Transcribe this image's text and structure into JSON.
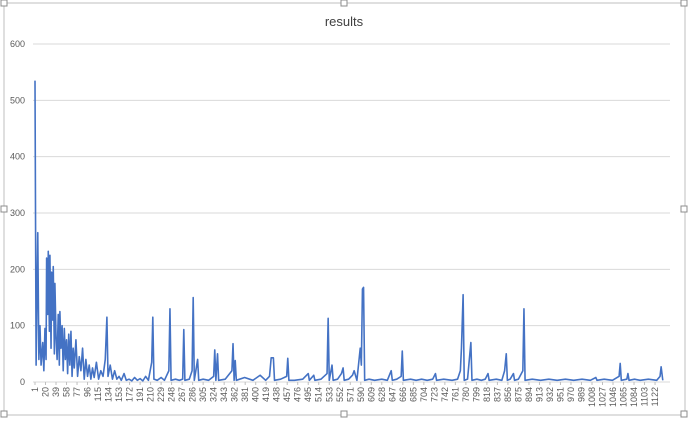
{
  "chart_data": {
    "type": "line",
    "title": "results",
    "x": [
      1,
      3,
      6,
      8,
      10,
      12,
      15,
      17,
      19,
      21,
      22,
      24,
      25,
      27,
      28,
      30,
      31,
      33,
      34,
      36,
      37,
      39,
      41,
      43,
      45,
      46,
      48,
      50,
      52,
      54,
      56,
      58,
      60,
      62,
      64,
      66,
      68,
      70,
      72,
      75,
      78,
      81,
      84,
      87,
      90,
      93,
      96,
      99,
      102,
      105,
      108,
      112,
      116,
      120,
      124,
      128,
      131,
      133,
      137,
      141,
      145,
      149,
      153,
      157,
      162,
      166,
      171,
      176,
      181,
      186,
      191,
      196,
      201,
      206,
      212,
      214,
      216,
      222,
      229,
      235,
      243,
      245,
      247,
      255,
      262,
      268,
      270,
      272,
      280,
      285,
      287,
      289,
      295,
      297,
      305,
      315,
      324,
      326,
      328,
      331,
      333,
      345,
      357,
      359,
      361,
      363,
      365,
      380,
      395,
      408,
      418,
      425,
      428,
      432,
      434,
      445,
      456,
      458,
      460,
      470,
      485,
      495,
      497,
      505,
      507,
      518,
      529,
      531,
      533,
      538,
      540,
      548,
      555,
      558,
      560,
      568,
      575,
      578,
      583,
      589,
      591,
      593,
      595,
      597,
      605,
      615,
      628,
      638,
      645,
      647,
      655,
      663,
      665,
      667,
      680,
      690,
      700,
      710,
      720,
      725,
      727,
      740,
      755,
      765,
      770,
      772,
      775,
      777,
      783,
      789,
      791,
      800,
      808,
      815,
      820,
      822,
      835,
      845,
      850,
      853,
      855,
      860,
      866,
      868,
      875,
      883,
      885,
      887,
      900,
      915,
      930,
      945,
      960,
      975,
      990,
      1005,
      1015,
      1017,
      1030,
      1045,
      1057,
      1059,
      1061,
      1071,
      1073,
      1075,
      1085,
      1095,
      1110,
      1125,
      1131,
      1133,
      1136
    ],
    "series": [
      {
        "name": "results",
        "color": "#4472c4",
        "values": [
          535,
          30,
          265,
          40,
          100,
          30,
          70,
          20,
          95,
          40,
          220,
          120,
          232,
          90,
          225,
          60,
          195,
          110,
          205,
          50,
          175,
          80,
          40,
          120,
          30,
          125,
          60,
          100,
          20,
          95,
          40,
          75,
          15,
          85,
          30,
          90,
          10,
          60,
          25,
          75,
          10,
          45,
          20,
          60,
          5,
          40,
          10,
          30,
          5,
          25,
          8,
          35,
          5,
          20,
          10,
          40,
          115,
          10,
          30,
          5,
          20,
          5,
          10,
          3,
          15,
          3,
          5,
          2,
          8,
          3,
          6,
          2,
          10,
          3,
          35,
          115,
          5,
          3,
          8,
          3,
          20,
          130,
          3,
          5,
          3,
          5,
          93,
          3,
          5,
          20,
          150,
          3,
          40,
          3,
          5,
          3,
          10,
          57,
          3,
          50,
          3,
          5,
          20,
          68,
          3,
          38,
          3,
          8,
          3,
          12,
          3,
          10,
          43,
          43,
          3,
          5,
          10,
          42,
          3,
          3,
          5,
          15,
          3,
          12,
          3,
          5,
          15,
          113,
          3,
          30,
          3,
          5,
          15,
          25,
          3,
          5,
          12,
          20,
          3,
          60,
          30,
          165,
          168,
          3,
          5,
          3,
          5,
          3,
          20,
          3,
          5,
          10,
          55,
          3,
          5,
          3,
          5,
          3,
          5,
          15,
          3,
          5,
          3,
          5,
          20,
          60,
          155,
          3,
          5,
          70,
          3,
          5,
          3,
          5,
          15,
          3,
          5,
          3,
          20,
          50,
          3,
          5,
          15,
          3,
          5,
          20,
          130,
          3,
          5,
          3,
          5,
          3,
          5,
          3,
          5,
          3,
          8,
          3,
          5,
          3,
          10,
          33,
          3,
          5,
          15,
          3,
          5,
          3,
          5,
          3,
          10,
          27,
          3
        ]
      }
    ],
    "xlim": [
      1,
      1140
    ],
    "xticks": [
      1,
      20,
      39,
      58,
      77,
      96,
      115,
      134,
      153,
      172,
      191,
      210,
      229,
      248,
      267,
      286,
      305,
      324,
      343,
      362,
      381,
      400,
      419,
      438,
      457,
      476,
      495,
      514,
      533,
      552,
      571,
      590,
      609,
      628,
      647,
      666,
      685,
      704,
      723,
      742,
      761,
      780,
      799,
      818,
      837,
      856,
      875,
      894,
      913,
      932,
      951,
      970,
      989,
      1008,
      1027,
      1046,
      1065,
      1084,
      1103,
      1122
    ],
    "ylim": [
      0,
      600
    ],
    "yticks": [
      0,
      100,
      200,
      300,
      400,
      500,
      600
    ],
    "grid": true
  }
}
